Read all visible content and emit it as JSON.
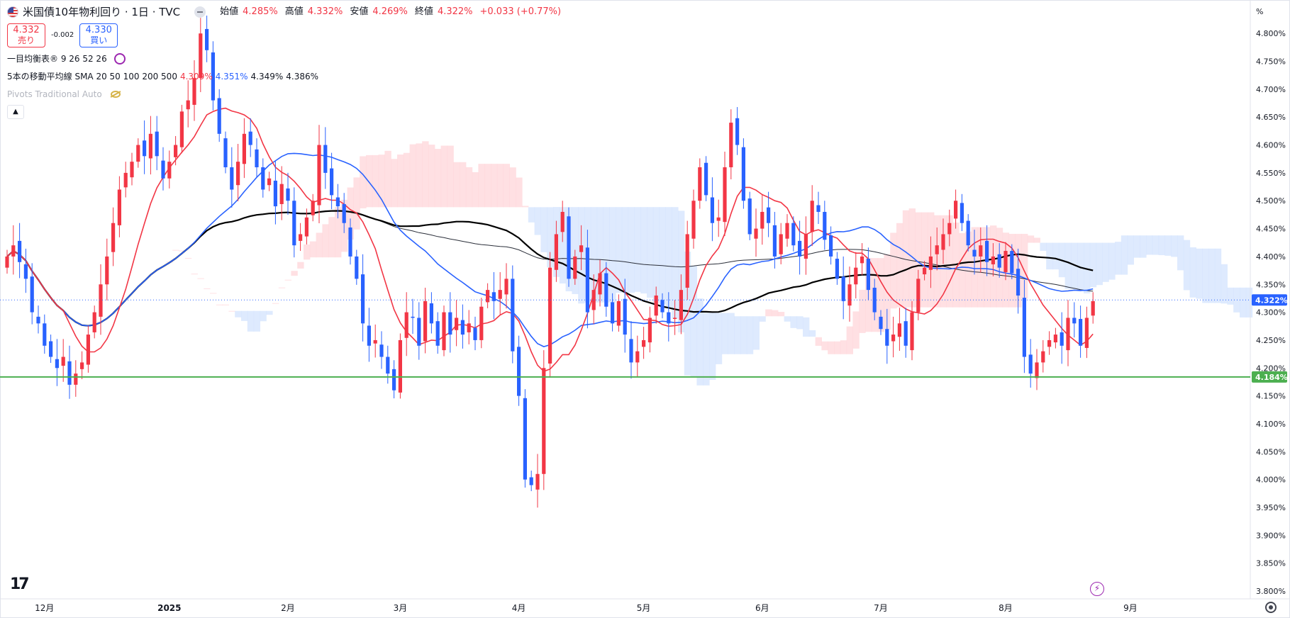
{
  "header": {
    "symbol_title": "米国債10年物利回り · 1日 · TVC",
    "ohlc": [
      {
        "key": "始値",
        "value": "4.285%"
      },
      {
        "key": "高値",
        "value": "4.332%"
      },
      {
        "key": "安値",
        "value": "4.269%"
      },
      {
        "key": "終値",
        "value": "4.322%"
      }
    ],
    "change": "+0.033 (+0.77%)"
  },
  "trade": {
    "sell_price": "4.332",
    "sell_label": "売り",
    "spread": "-0.002",
    "buy_price": "4.330",
    "buy_label": "買い"
  },
  "indicators": {
    "ichimoku": "一目均衡表® 9 26 52 26",
    "sma_name": "5本の移動平均線 SMA 20 50 100 200 500",
    "sma_values": [
      "4.309%",
      "4.351%",
      "4.349%",
      "4.386%"
    ],
    "pivots": "Pivots Traditional Auto"
  },
  "colors": {
    "up": "#f23645",
    "down": "#2962ff",
    "sma20": "#f23645",
    "sma50": "#2962ff",
    "sma100": "#000000",
    "sma200": "#2a2e39",
    "pivot": "#4caf50",
    "cloud_bull": "#ffd6d9",
    "cloud_bear": "#d3e3fd"
  },
  "icons": {
    "logo": "tradingview-logo-icon",
    "bolt": "lightning-icon",
    "settings": "gear-icon",
    "refresh": "refresh-icon",
    "eye_off": "eye-off-icon",
    "collapse": "chevron-up-icon"
  },
  "price_axis_unit": "%",
  "chart_data": {
    "type": "candlestick",
    "x_axis_labels": [
      {
        "label": "12月",
        "bar": 6
      },
      {
        "label": "2025",
        "bar": 26
      },
      {
        "label": "2月",
        "bar": 45
      },
      {
        "label": "3月",
        "bar": 63
      },
      {
        "label": "4月",
        "bar": 82
      },
      {
        "label": "5月",
        "bar": 102
      },
      {
        "label": "6月",
        "bar": 121
      },
      {
        "label": "7月",
        "bar": 140
      },
      {
        "label": "8月",
        "bar": 160
      },
      {
        "label": "9月",
        "bar": 180
      }
    ],
    "y_ticks": [
      4.8,
      4.75,
      4.7,
      4.65,
      4.6,
      4.55,
      4.5,
      4.45,
      4.4,
      4.35,
      4.3,
      4.25,
      4.2,
      4.15,
      4.1,
      4.05,
      4.0,
      3.95,
      3.9,
      3.85,
      3.8
    ],
    "ylim": [
      3.786,
      4.86
    ],
    "current_price": 4.322,
    "current_price_label": "4.322%",
    "pivot_level": 4.184,
    "pivot_label": "4.184%",
    "close": [
      4.4,
      4.42,
      4.39,
      4.36,
      4.3,
      4.28,
      4.24,
      4.22,
      4.2,
      4.22,
      4.17,
      4.19,
      4.21,
      4.26,
      4.3,
      4.35,
      4.4,
      4.46,
      4.52,
      4.55,
      4.57,
      4.6,
      4.58,
      4.62,
      4.58,
      4.54,
      4.57,
      4.6,
      4.66,
      4.68,
      4.72,
      4.8,
      4.77,
      4.68,
      4.62,
      4.56,
      4.52,
      4.57,
      4.62,
      4.6,
      4.56,
      4.52,
      4.54,
      4.49,
      4.53,
      4.5,
      4.42,
      4.44,
      4.47,
      4.5,
      4.6,
      4.55,
      4.51,
      4.49,
      4.46,
      4.4,
      4.36,
      4.28,
      4.24,
      4.25,
      4.22,
      4.19,
      4.16,
      4.25,
      4.3,
      4.29,
      4.24,
      4.32,
      4.28,
      4.24,
      4.3,
      4.26,
      4.29,
      4.26,
      4.28,
      4.25,
      4.31,
      4.34,
      4.32,
      4.34,
      4.36,
      4.23,
      4.15,
      4.0,
      3.99,
      4.01,
      4.2,
      4.38,
      4.44,
      4.48,
      4.36,
      4.4,
      4.42,
      4.3,
      4.34,
      4.37,
      4.31,
      4.28,
      4.32,
      4.26,
      4.21,
      4.23,
      4.25,
      4.29,
      4.33,
      4.3,
      4.28,
      4.29,
      4.34,
      4.44,
      4.5,
      4.56,
      4.51,
      4.46,
      4.47,
      4.56,
      4.64,
      4.6,
      4.5,
      4.44,
      4.45,
      4.48,
      4.46,
      4.4,
      4.44,
      4.46,
      4.42,
      4.4,
      4.44,
      4.5,
      4.48,
      4.43,
      4.4,
      4.36,
      4.32,
      4.35,
      4.38,
      4.4,
      4.34,
      4.3,
      4.27,
      4.24,
      4.26,
      4.28,
      4.24,
      4.3,
      4.36,
      4.38,
      4.4,
      4.42,
      4.44,
      4.46,
      4.5,
      4.46,
      4.42,
      4.4,
      4.42,
      4.39,
      4.4,
      4.38,
      4.41,
      4.37,
      4.33,
      4.22,
      4.19,
      4.21,
      4.23,
      4.25,
      4.26,
      4.24,
      4.29,
      4.28,
      4.24,
      4.29,
      4.32
    ]
  }
}
